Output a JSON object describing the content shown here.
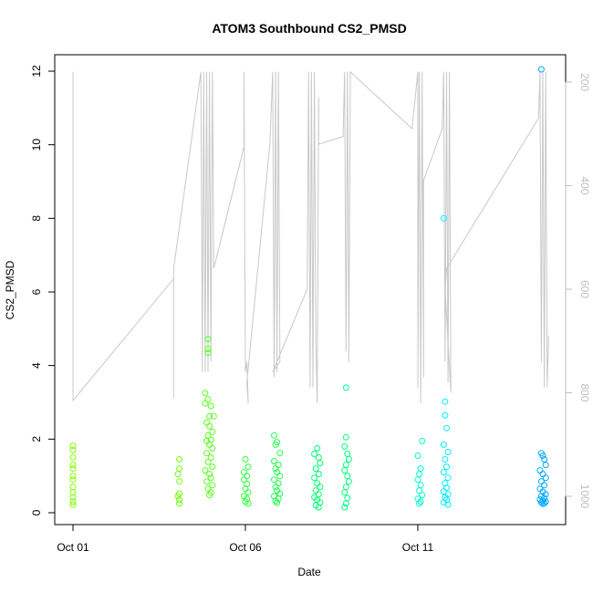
{
  "chart_data": {
    "type": "scatter",
    "title": "ATOM3 Southbound CS2_PMSD",
    "xlabel": "Date",
    "ylabel": "CS2_PMSD",
    "x_ticks": [
      "Oct 01",
      "Oct 06",
      "Oct 11"
    ],
    "xlim": [
      "2023-10-01T00:00",
      "2023-10-15T00:00"
    ],
    "ylim": [
      0,
      12
    ],
    "y_ticks": [
      0,
      2,
      4,
      6,
      8,
      10,
      12
    ],
    "right_axis": {
      "label": "",
      "reversed": true,
      "ticks": [
        200,
        400,
        600,
        800,
        1000
      ],
      "lim": [
        1000,
        200
      ],
      "color": "#bebebe"
    },
    "grid": false,
    "legend": "none",
    "point_series": [
      {
        "color": "#80ff00",
        "points": [
          [
            "2023-10-01T00:00",
            1.82
          ],
          [
            "2023-10-01T00:00",
            1.7
          ],
          [
            "2023-10-01T00:00",
            1.5
          ],
          [
            "2023-10-01T00:00",
            1.3
          ],
          [
            "2023-10-01T00:00",
            1.2
          ],
          [
            "2023-10-01T00:00",
            1.0
          ],
          [
            "2023-10-01T00:00",
            0.9
          ],
          [
            "2023-10-01T00:00",
            0.7
          ],
          [
            "2023-10-01T00:00",
            0.55
          ],
          [
            "2023-10-01T00:00",
            0.42
          ],
          [
            "2023-10-01T00:00",
            0.3
          ],
          [
            "2023-10-01T00:00",
            0.22
          ]
        ]
      },
      {
        "color": "#70ff10",
        "points": [
          [
            "2023-10-04T02:00",
            1.45
          ],
          [
            "2023-10-04T02:00",
            1.2
          ],
          [
            "2023-10-04T01:00",
            1.05
          ],
          [
            "2023-10-04T02:00",
            0.85
          ],
          [
            "2023-10-04T02:00",
            0.52
          ],
          [
            "2023-10-04T01:00",
            0.45
          ],
          [
            "2023-10-04T02:00",
            0.35
          ],
          [
            "2023-10-04T02:00",
            0.25
          ]
        ]
      },
      {
        "color": "#5cff20",
        "points": [
          [
            "2023-10-04T22:00",
            4.72
          ],
          [
            "2023-10-04T22:00",
            4.45
          ],
          [
            "2023-10-04T22:00",
            4.35
          ],
          [
            "2023-10-04T20:00",
            3.25
          ],
          [
            "2023-10-04T22:00",
            3.08
          ],
          [
            "2023-10-04T20:00",
            2.97
          ],
          [
            "2023-10-05T00:00",
            2.9
          ],
          [
            "2023-10-05T02:00",
            2.62
          ],
          [
            "2023-10-04T23:00",
            2.62
          ],
          [
            "2023-10-04T21:00",
            2.45
          ],
          [
            "2023-10-04T23:00",
            2.35
          ],
          [
            "2023-10-05T01:00",
            2.2
          ],
          [
            "2023-10-04T22:00",
            2.1
          ],
          [
            "2023-10-05T00:00",
            1.98
          ],
          [
            "2023-10-04T21:00",
            1.95
          ],
          [
            "2023-10-04T23:00",
            1.85
          ],
          [
            "2023-10-05T01:00",
            1.75
          ],
          [
            "2023-10-04T21:00",
            1.62
          ],
          [
            "2023-10-05T00:00",
            1.5
          ],
          [
            "2023-10-04T22:00",
            1.38
          ],
          [
            "2023-10-05T01:00",
            1.25
          ],
          [
            "2023-10-04T20:00",
            1.15
          ],
          [
            "2023-10-04T23:00",
            1.05
          ],
          [
            "2023-10-05T00:00",
            0.95
          ],
          [
            "2023-10-04T21:00",
            0.85
          ],
          [
            "2023-10-05T01:00",
            0.75
          ],
          [
            "2023-10-04T22:00",
            0.65
          ],
          [
            "2023-10-05T00:00",
            0.55
          ],
          [
            "2023-10-04T23:00",
            0.48
          ]
        ]
      },
      {
        "color": "#30ff40",
        "points": [
          [
            "2023-10-06T00:00",
            1.45
          ],
          [
            "2023-10-06T02:00",
            1.25
          ],
          [
            "2023-10-05T23:00",
            1.1
          ],
          [
            "2023-10-06T01:00",
            1.0
          ],
          [
            "2023-10-05T23:00",
            0.9
          ],
          [
            "2023-10-06T01:00",
            0.78
          ],
          [
            "2023-10-06T00:00",
            0.65
          ],
          [
            "2023-10-06T02:00",
            0.55
          ],
          [
            "2023-10-05T23:00",
            0.45
          ],
          [
            "2023-10-06T01:00",
            0.38
          ],
          [
            "2023-10-06T00:00",
            0.3
          ],
          [
            "2023-10-06T02:00",
            0.25
          ]
        ]
      },
      {
        "color": "#20ff50",
        "points": [
          [
            "2023-10-06T20:00",
            2.1
          ],
          [
            "2023-10-06T22:00",
            1.92
          ],
          [
            "2023-10-06T21:00",
            1.85
          ],
          [
            "2023-10-07T00:00",
            1.62
          ],
          [
            "2023-10-06T20:00",
            1.4
          ],
          [
            "2023-10-06T23:00",
            1.3
          ],
          [
            "2023-10-06T21:00",
            1.2
          ],
          [
            "2023-10-06T22:00",
            1.1
          ],
          [
            "2023-10-07T00:00",
            1.0
          ],
          [
            "2023-10-06T20:00",
            0.9
          ],
          [
            "2023-10-06T23:00",
            0.8
          ],
          [
            "2023-10-06T21:00",
            0.7
          ],
          [
            "2023-10-06T22:00",
            0.6
          ],
          [
            "2023-10-07T00:00",
            0.52
          ],
          [
            "2023-10-06T20:00",
            0.45
          ],
          [
            "2023-10-06T23:00",
            0.38
          ],
          [
            "2023-10-06T21:00",
            0.32
          ],
          [
            "2023-10-06T22:00",
            0.27
          ]
        ]
      },
      {
        "color": "#00ff70",
        "points": [
          [
            "2023-10-08T02:00",
            1.75
          ],
          [
            "2023-10-08T00:00",
            1.6
          ],
          [
            "2023-10-08T03:00",
            1.5
          ],
          [
            "2023-10-08T04:00",
            1.35
          ],
          [
            "2023-10-08T01:00",
            1.2
          ],
          [
            "2023-10-08T03:00",
            1.05
          ],
          [
            "2023-10-08T00:00",
            0.95
          ],
          [
            "2023-10-08T02:00",
            0.8
          ],
          [
            "2023-10-08T04:00",
            0.7
          ],
          [
            "2023-10-08T01:00",
            0.6
          ],
          [
            "2023-10-08T03:00",
            0.5
          ],
          [
            "2023-10-08T00:00",
            0.42
          ],
          [
            "2023-10-08T02:00",
            0.35
          ],
          [
            "2023-10-08T04:00",
            0.28
          ],
          [
            "2023-10-08T01:00",
            0.2
          ],
          [
            "2023-10-08T03:00",
            0.15
          ]
        ]
      },
      {
        "color": "#00ff80",
        "points": [
          [
            "2023-10-08T22:00",
            3.4
          ],
          [
            "2023-10-08T22:00",
            2.05
          ],
          [
            "2023-10-08T21:00",
            1.8
          ],
          [
            "2023-10-08T23:00",
            1.6
          ],
          [
            "2023-10-09T00:00",
            1.45
          ],
          [
            "2023-10-08T22:00",
            1.3
          ],
          [
            "2023-10-08T21:00",
            1.15
          ],
          [
            "2023-10-08T23:00",
            1.0
          ],
          [
            "2023-10-09T00:00",
            0.85
          ],
          [
            "2023-10-08T22:00",
            0.7
          ],
          [
            "2023-10-08T21:00",
            0.55
          ],
          [
            "2023-10-08T23:00",
            0.4
          ],
          [
            "2023-10-08T22:00",
            0.25
          ],
          [
            "2023-10-08T21:00",
            0.15
          ]
        ]
      },
      {
        "color": "#00ffd0",
        "points": [
          [
            "2023-10-11T03:00",
            1.95
          ],
          [
            "2023-10-11T00:00",
            1.55
          ],
          [
            "2023-10-11T02:00",
            1.2
          ],
          [
            "2023-10-11T01:00",
            1.05
          ],
          [
            "2023-10-11T00:00",
            0.9
          ],
          [
            "2023-10-11T02:00",
            0.75
          ],
          [
            "2023-10-11T01:00",
            0.6
          ],
          [
            "2023-10-11T03:00",
            0.48
          ],
          [
            "2023-10-11T00:00",
            0.38
          ],
          [
            "2023-10-11T02:00",
            0.3
          ],
          [
            "2023-10-11T01:00",
            0.25
          ]
        ]
      },
      {
        "color": "#00f0ff",
        "points": [
          [
            "2023-10-11T18:00",
            8.0
          ],
          [
            "2023-10-11T19:00",
            3.02
          ],
          [
            "2023-10-11T19:00",
            2.65
          ],
          [
            "2023-10-11T20:00",
            2.3
          ],
          [
            "2023-10-11T18:00",
            1.85
          ],
          [
            "2023-10-11T21:00",
            1.65
          ],
          [
            "2023-10-11T19:00",
            1.45
          ],
          [
            "2023-10-11T20:00",
            1.25
          ],
          [
            "2023-10-11T18:00",
            1.1
          ],
          [
            "2023-10-11T21:00",
            0.95
          ],
          [
            "2023-10-11T19:00",
            0.8
          ],
          [
            "2023-10-11T20:00",
            0.68
          ],
          [
            "2023-10-11T18:00",
            0.58
          ],
          [
            "2023-10-11T21:00",
            0.5
          ],
          [
            "2023-10-11T19:00",
            0.42
          ],
          [
            "2023-10-11T20:00",
            0.35
          ],
          [
            "2023-10-11T18:00",
            0.28
          ],
          [
            "2023-10-11T21:00",
            0.22
          ]
        ]
      },
      {
        "color": "#00a8ff",
        "points": [
          [
            "2023-10-14T14:00",
            12.05
          ],
          [
            "2023-10-14T14:00",
            1.62
          ],
          [
            "2023-10-14T15:00",
            1.55
          ],
          [
            "2023-10-14T16:00",
            1.45
          ],
          [
            "2023-10-14T17:00",
            1.3
          ],
          [
            "2023-10-14T13:00",
            1.15
          ],
          [
            "2023-10-14T15:00",
            1.05
          ],
          [
            "2023-10-14T17:00",
            0.95
          ],
          [
            "2023-10-14T14:00",
            0.85
          ],
          [
            "2023-10-14T16:00",
            0.75
          ],
          [
            "2023-10-14T13:00",
            0.65
          ],
          [
            "2023-10-14T15:00",
            0.57
          ],
          [
            "2023-10-14T17:00",
            0.5
          ],
          [
            "2023-10-14T14:00",
            0.45
          ],
          [
            "2023-10-14T16:00",
            0.4
          ],
          [
            "2023-10-14T13:00",
            0.36
          ],
          [
            "2023-10-14T15:00",
            0.33
          ],
          [
            "2023-10-14T17:00",
            0.3
          ],
          [
            "2023-10-14T14:00",
            0.28
          ],
          [
            "2023-10-14T16:00",
            0.26
          ],
          [
            "2023-10-14T15:00",
            0.24
          ]
        ]
      }
    ],
    "depth_line": {
      "color": "#c8c8c8",
      "points": [
        [
          "2023-10-01T00:00",
          500
        ],
        [
          "2023-10-01T00:00",
          180
        ],
        [
          "2023-10-01T00:00",
          815
        ],
        [
          "2023-10-03T22:00",
          580
        ],
        [
          "2023-10-03T22:00",
          620
        ],
        [
          "2023-10-03T22:00",
          810
        ],
        [
          "2023-10-03T22:00",
          560
        ],
        [
          "2023-10-04T17:00",
          180
        ],
        [
          "2023-10-04T18:00",
          760
        ],
        [
          "2023-10-04T19:00",
          180
        ],
        [
          "2023-10-04T20:00",
          760
        ],
        [
          "2023-10-04T21:00",
          180
        ],
        [
          "2023-10-04T22:00",
          760
        ],
        [
          "2023-10-04T23:00",
          180
        ],
        [
          "2023-10-05T00:00",
          740
        ],
        [
          "2023-10-05T01:00",
          180
        ],
        [
          "2023-10-05T02:00",
          560
        ],
        [
          "2023-10-05T23:00",
          325
        ],
        [
          "2023-10-05T23:00",
          180
        ],
        [
          "2023-10-06T00:00",
          760
        ],
        [
          "2023-10-06T01:00",
          740
        ],
        [
          "2023-10-06T02:00",
          820
        ],
        [
          "2023-10-06T01:00",
          780
        ],
        [
          "2023-10-06T17:00",
          320
        ],
        [
          "2023-10-06T19:00",
          180
        ],
        [
          "2023-10-06T20:00",
          770
        ],
        [
          "2023-10-06T21:00",
          180
        ],
        [
          "2023-10-06T22:00",
          760
        ],
        [
          "2023-10-06T23:00",
          180
        ],
        [
          "2023-10-07T00:00",
          740
        ],
        [
          "2023-10-06T19:00",
          760
        ],
        [
          "2023-10-07T19:00",
          600
        ],
        [
          "2023-10-07T20:00",
          180
        ],
        [
          "2023-10-07T21:00",
          790
        ],
        [
          "2023-10-07T22:00",
          180
        ],
        [
          "2023-10-07T23:00",
          790
        ],
        [
          "2023-10-08T00:00",
          180
        ],
        [
          "2023-10-08T01:00",
          700
        ],
        [
          "2023-10-08T02:00",
          820
        ],
        [
          "2023-10-08T03:00",
          230
        ],
        [
          "2023-10-08T03:00",
          320
        ],
        [
          "2023-10-08T20:00",
          305
        ],
        [
          "2023-10-08T21:00",
          180
        ],
        [
          "2023-10-08T22:00",
          720
        ],
        [
          "2023-10-08T23:00",
          180
        ],
        [
          "2023-10-09T00:00",
          740
        ],
        [
          "2023-10-09T01:00",
          180
        ],
        [
          "2023-10-10T20:00",
          290
        ],
        [
          "2023-10-11T00:00",
          180
        ],
        [
          "2023-10-11T00:00",
          790
        ],
        [
          "2023-10-11T01:00",
          180
        ],
        [
          "2023-10-11T02:00",
          820
        ],
        [
          "2023-10-11T03:00",
          180
        ],
        [
          "2023-10-11T04:00",
          770
        ],
        [
          "2023-10-11T04:00",
          390
        ],
        [
          "2023-10-11T17:00",
          290
        ],
        [
          "2023-10-11T18:00",
          180
        ],
        [
          "2023-10-11T19:00",
          740
        ],
        [
          "2023-10-11T20:00",
          180
        ],
        [
          "2023-10-11T21:00",
          780
        ],
        [
          "2023-10-11T22:00",
          180
        ],
        [
          "2023-10-11T23:00",
          800
        ],
        [
          "2023-10-11T19:00",
          600
        ],
        [
          "2023-10-11T20:00",
          560
        ],
        [
          "2023-10-14T12:00",
          270
        ],
        [
          "2023-10-14T13:00",
          180
        ],
        [
          "2023-10-14T14:00",
          740
        ],
        [
          "2023-10-14T15:00",
          180
        ],
        [
          "2023-10-14T16:00",
          790
        ],
        [
          "2023-10-14T17:00",
          180
        ],
        [
          "2023-10-14T18:00",
          790
        ],
        [
          "2023-10-14T19:00",
          690
        ]
      ]
    }
  }
}
